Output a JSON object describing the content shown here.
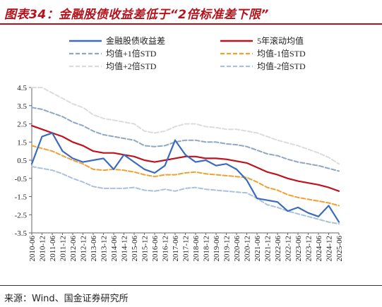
{
  "figure": {
    "title": "图表34：金融股债收益差低于“2倍标准差下限”",
    "source": "来源：Wind、国金证券研究所"
  },
  "chart_data": {
    "type": "line",
    "title": "",
    "xlabel": "",
    "ylabel": "",
    "ylim": [
      -3.5,
      4.5
    ],
    "yticks": [
      "4.5",
      "3.5",
      "2.5",
      "1.5",
      "0.5",
      "-0.5",
      "-1.5",
      "-2.5",
      "-3.5"
    ],
    "xticks": [
      "2010-06",
      "2010-12",
      "2011-06",
      "2011-12",
      "2012-06",
      "2012-12",
      "2013-06",
      "2013-12",
      "2014-06",
      "2014-12",
      "2015-06",
      "2015-12",
      "2016-06",
      "2016-12",
      "2017-06",
      "2017-12",
      "2018-06",
      "2018-12",
      "2019-06",
      "2019-12",
      "2020-06",
      "2020-12",
      "2021-06",
      "2021-12",
      "2022-06",
      "2022-12",
      "2023-06",
      "2023-12",
      "2024-06",
      "2024-12",
      "2025-06"
    ],
    "x": [
      "2010-06",
      "2010-12",
      "2011-06",
      "2011-12",
      "2012-06",
      "2012-12",
      "2013-06",
      "2013-12",
      "2014-06",
      "2014-12",
      "2015-06",
      "2015-12",
      "2016-06",
      "2016-12",
      "2017-06",
      "2017-12",
      "2018-06",
      "2018-12",
      "2019-06",
      "2019-12",
      "2020-06",
      "2020-12",
      "2021-06",
      "2021-12",
      "2022-06",
      "2022-12",
      "2023-06",
      "2023-12",
      "2024-06",
      "2024-12",
      "2025-06"
    ],
    "grid": false,
    "legend_position": "top",
    "series": [
      {
        "name": "金融股债收益差",
        "color": "#3a6bbf",
        "style": "solid",
        "width": 2.2,
        "values": [
          0.3,
          1.8,
          2.0,
          1.0,
          0.6,
          0.4,
          0.5,
          0.6,
          0.0,
          0.8,
          0.4,
          0.0,
          -0.2,
          0.2,
          1.6,
          0.8,
          0.4,
          0.5,
          0.2,
          0.3,
          0.0,
          -0.6,
          -1.6,
          -1.7,
          -1.8,
          -2.3,
          -2.1,
          -2.4,
          -2.6,
          -2.0,
          -2.9
        ]
      },
      {
        "name": "5年滚动均值",
        "color": "#c0121c",
        "style": "solid",
        "width": 2.2,
        "values": [
          2.4,
          2.2,
          2.0,
          1.8,
          1.5,
          1.3,
          1.0,
          0.9,
          0.9,
          0.8,
          0.7,
          0.5,
          0.4,
          0.5,
          0.6,
          0.7,
          0.7,
          0.6,
          0.6,
          0.55,
          0.45,
          0.35,
          0.1,
          -0.15,
          -0.3,
          -0.5,
          -0.65,
          -0.75,
          -0.85,
          -1.0,
          -1.2
        ]
      },
      {
        "name": "均值+1倍STD",
        "color": "#8ea7c4",
        "style": "dashed",
        "width": 2.0,
        "values": [
          3.4,
          3.3,
          3.1,
          2.9,
          2.6,
          2.4,
          2.1,
          1.9,
          1.8,
          1.7,
          1.6,
          1.3,
          1.25,
          1.3,
          1.5,
          1.6,
          1.6,
          1.5,
          1.5,
          1.4,
          1.35,
          1.25,
          1.05,
          0.85,
          0.75,
          0.55,
          0.4,
          0.3,
          0.2,
          0.05,
          -0.1
        ]
      },
      {
        "name": "均值-1倍STD",
        "color": "#f0a030",
        "style": "dashed",
        "width": 2.0,
        "values": [
          1.3,
          1.15,
          1.0,
          0.75,
          0.5,
          0.3,
          0.0,
          -0.05,
          0.0,
          -0.05,
          -0.15,
          -0.3,
          -0.4,
          -0.3,
          -0.3,
          -0.2,
          -0.15,
          -0.25,
          -0.3,
          -0.35,
          -0.4,
          -0.45,
          -0.7,
          -1.0,
          -1.15,
          -1.4,
          -1.55,
          -1.65,
          -1.75,
          -1.85,
          -2.0
        ]
      },
      {
        "name": "均值+2倍STD",
        "color": "#dcdcdc",
        "style": "dashed",
        "width": 2.0,
        "values": [
          4.5,
          4.5,
          4.2,
          3.9,
          3.6,
          3.4,
          3.0,
          2.8,
          2.7,
          2.6,
          2.5,
          2.1,
          2.0,
          2.1,
          2.35,
          2.5,
          2.5,
          2.35,
          2.3,
          2.2,
          2.2,
          2.1,
          2.0,
          1.8,
          1.6,
          1.45,
          1.3,
          1.1,
          0.9,
          0.65,
          0.3
        ]
      },
      {
        "name": "均值-2倍STD",
        "color": "#a9c1de",
        "style": "dashed",
        "width": 2.0,
        "values": [
          0.15,
          0.05,
          -0.05,
          -0.25,
          -0.5,
          -0.7,
          -0.95,
          -1.05,
          -1.05,
          -1.05,
          -1.0,
          -1.15,
          -1.2,
          -1.1,
          -1.2,
          -1.05,
          -1.0,
          -1.1,
          -1.15,
          -1.2,
          -1.25,
          -1.3,
          -1.6,
          -1.95,
          -2.1,
          -2.3,
          -2.45,
          -2.6,
          -2.75,
          -2.9,
          -3.0
        ]
      }
    ]
  }
}
